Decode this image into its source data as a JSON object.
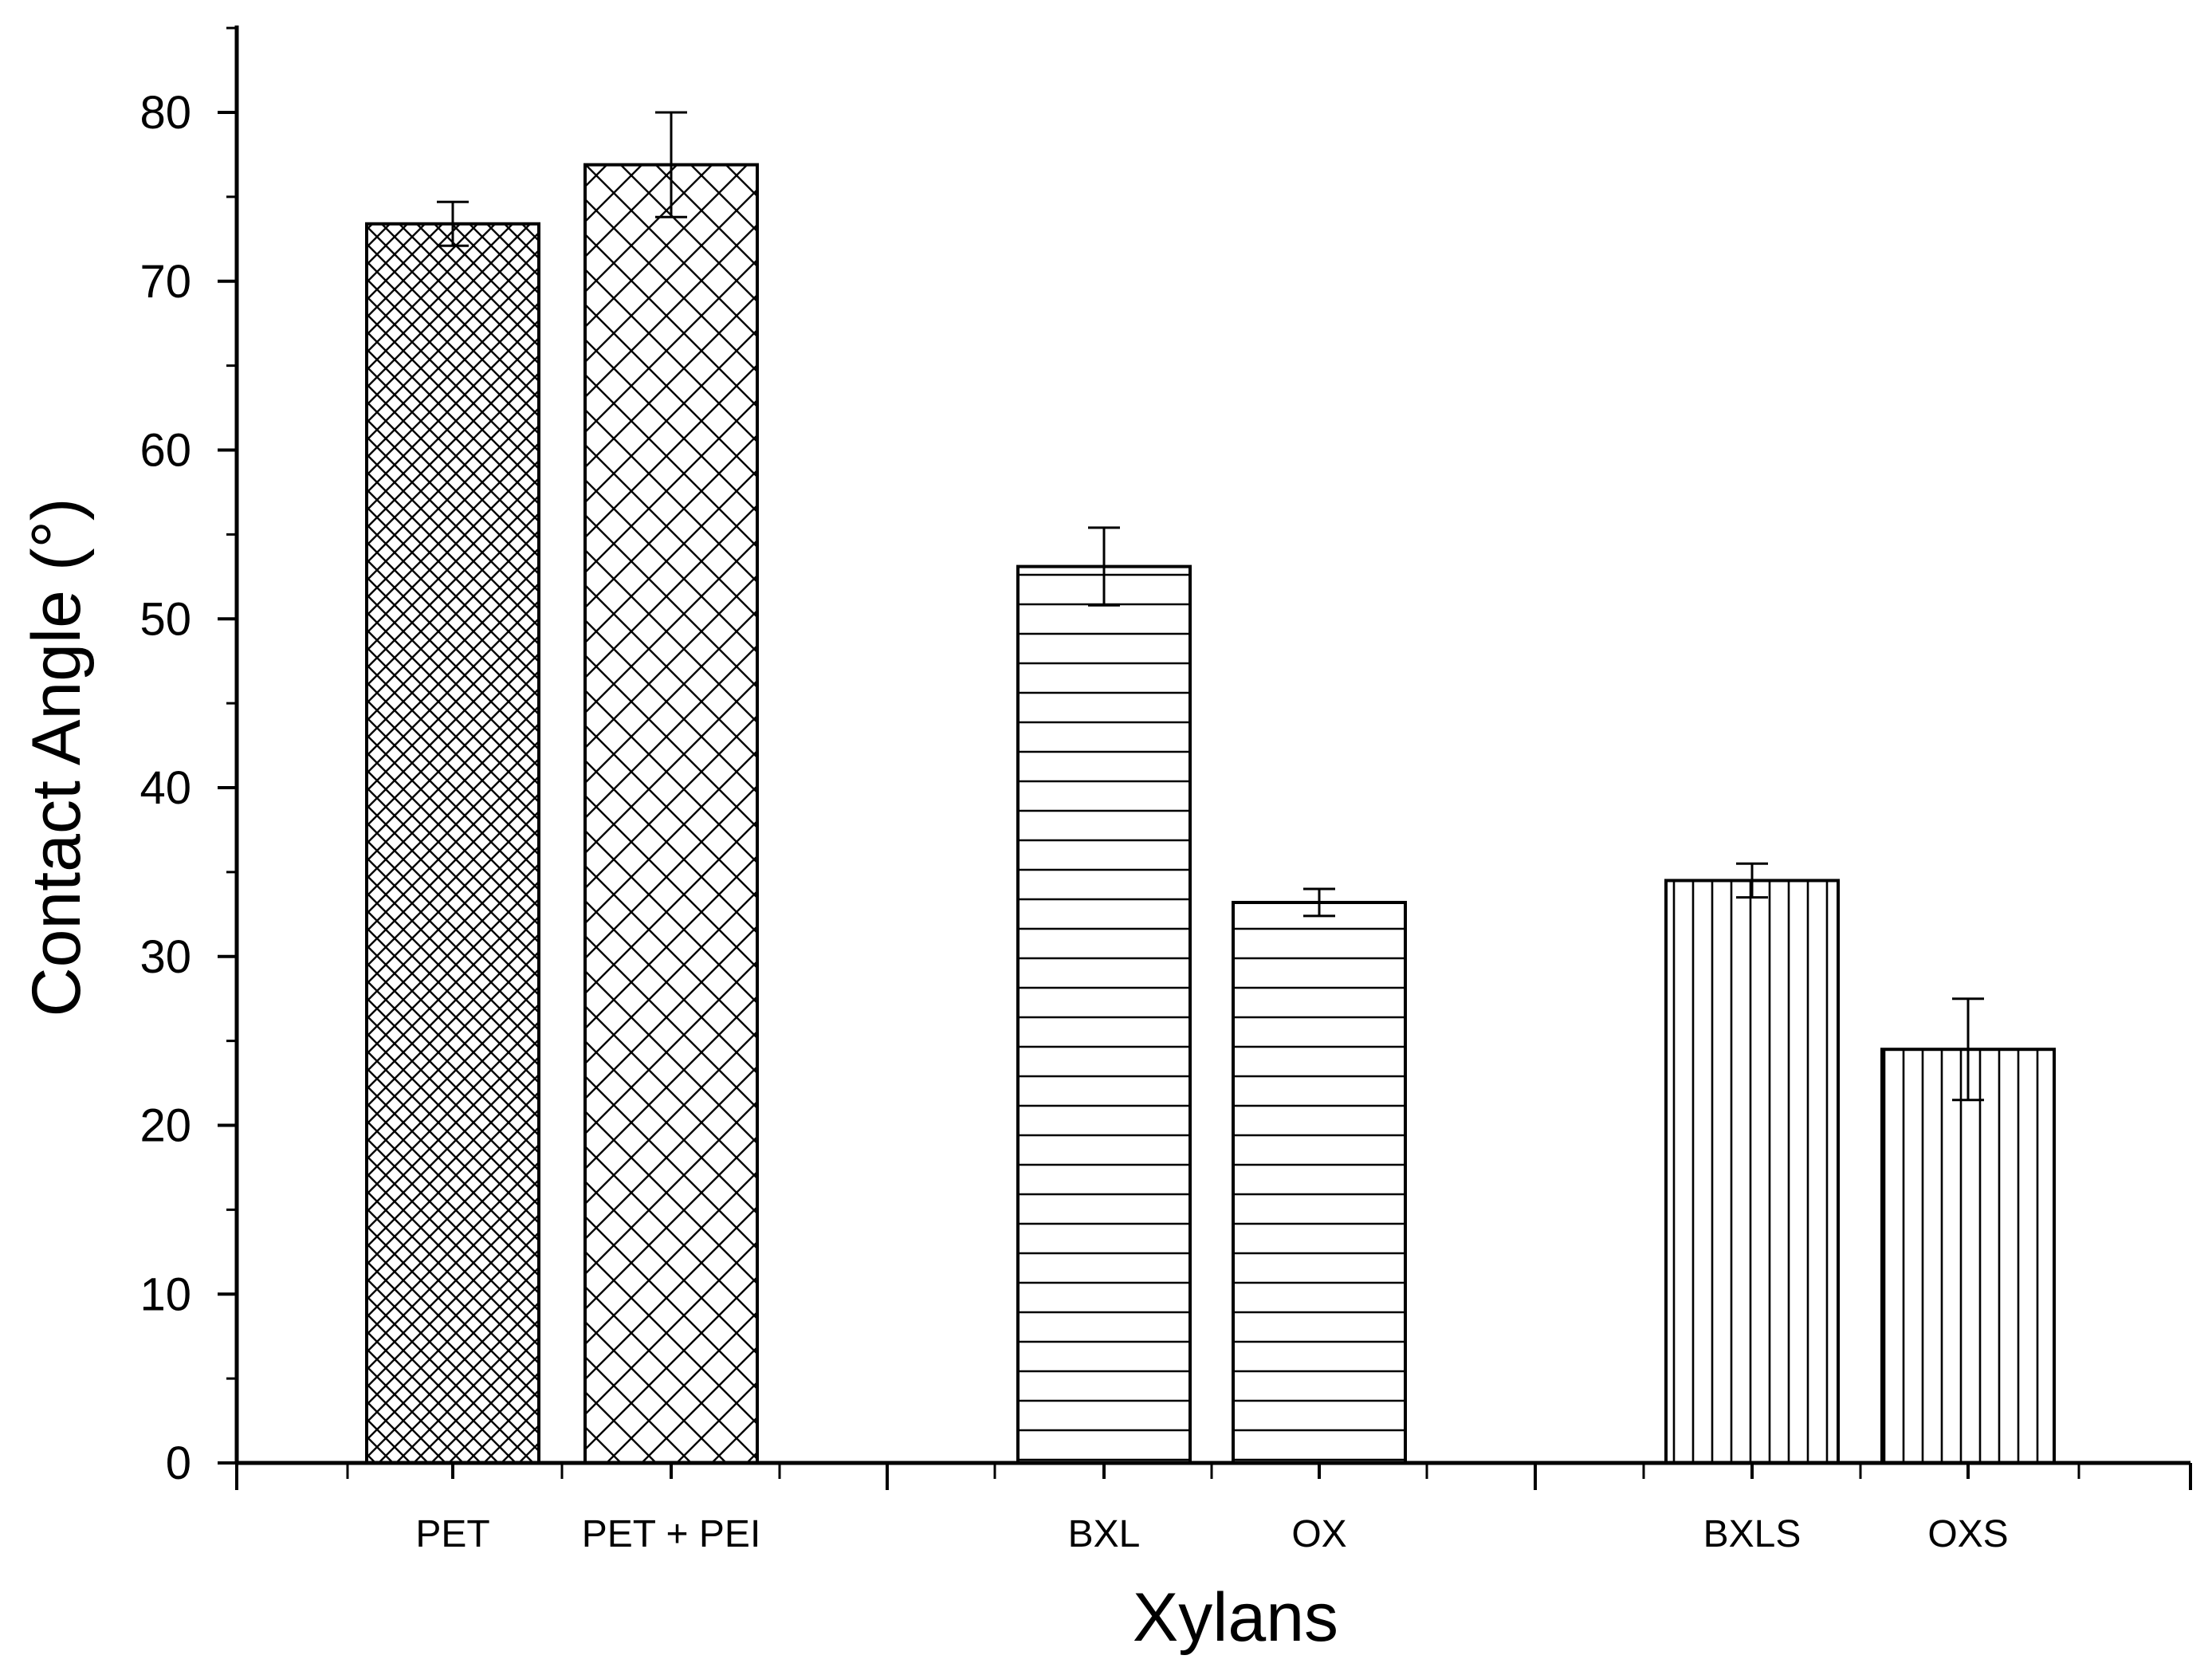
{
  "chart_data": {
    "type": "bar",
    "title": "",
    "xlabel": "Xylans",
    "ylabel": "Contact Angle (°)",
    "ylim": [
      0,
      85
    ],
    "yticks": [
      0,
      10,
      20,
      30,
      40,
      50,
      60,
      70,
      80
    ],
    "grid": false,
    "legend": "none",
    "groups": [
      {
        "bars": [
          {
            "label": "PET",
            "value": 73.4,
            "error": 1.3,
            "pattern": "fine-crosshatch"
          },
          {
            "label": "PET + PEI",
            "value": 76.9,
            "error": 3.1,
            "pattern": "coarse-crosshatch"
          }
        ]
      },
      {
        "bars": [
          {
            "label": "BXL",
            "value": 53.1,
            "error": 2.3,
            "pattern": "horizontal-lines"
          },
          {
            "label": "OX",
            "value": 33.2,
            "error": 0.8,
            "pattern": "horizontal-lines"
          }
        ]
      },
      {
        "bars": [
          {
            "label": "BXLS",
            "value": 34.5,
            "error": 1.0,
            "pattern": "vertical-lines"
          },
          {
            "label": "OXS",
            "value": 24.5,
            "error": 3.0,
            "pattern": "vertical-lines"
          }
        ]
      }
    ],
    "colors": {
      "axis": "#000000",
      "bar_fill": "#ffffff",
      "pattern": "#000000"
    }
  }
}
